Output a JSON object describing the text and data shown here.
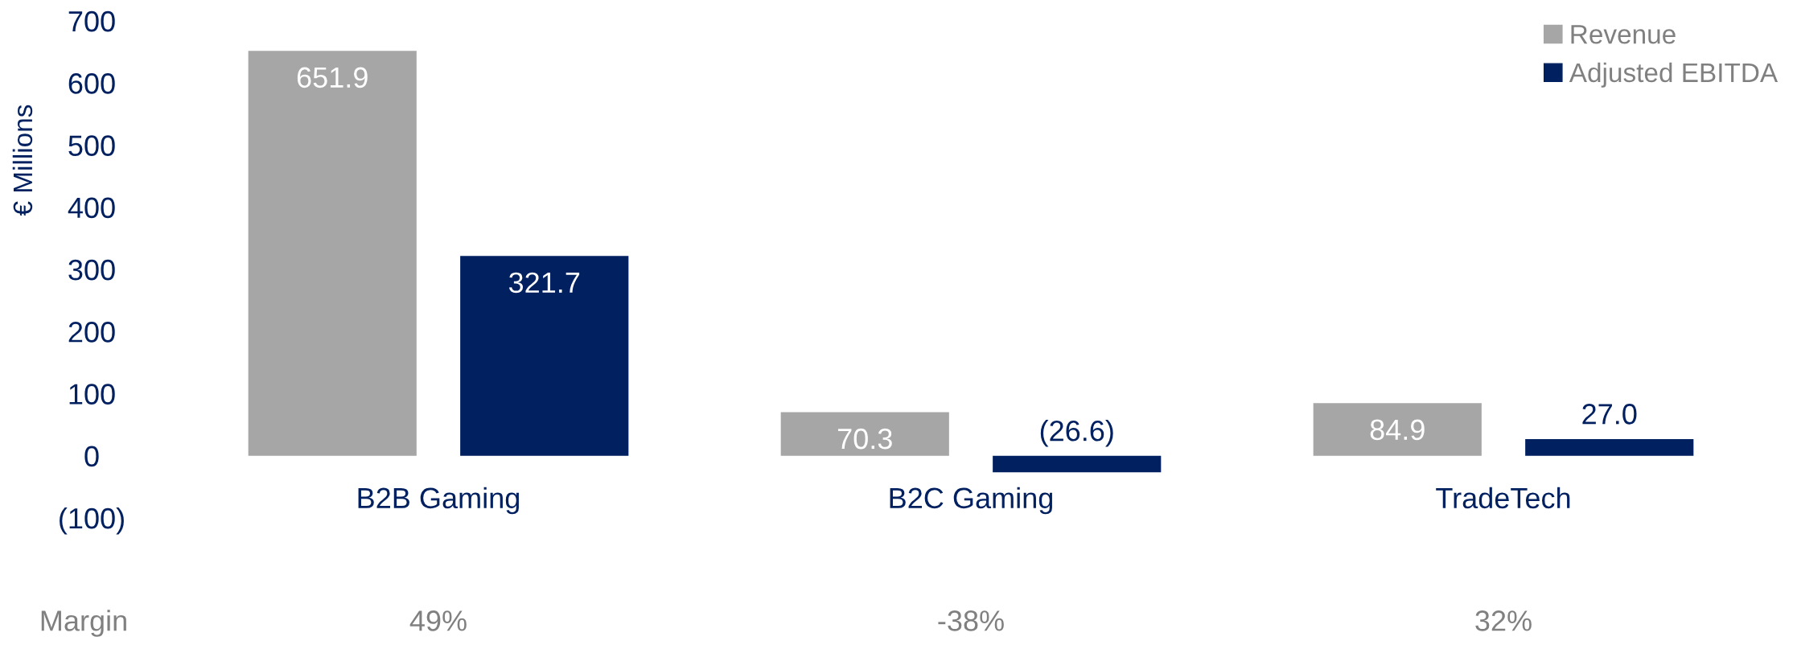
{
  "chart_data": {
    "type": "bar",
    "ylabel": "€ Millions",
    "categories": [
      "B2B Gaming",
      "B2C Gaming",
      "TradeTech"
    ],
    "series": [
      {
        "name": "Revenue",
        "color": "#a6a6a6",
        "values": [
          651.9,
          70.3,
          84.9
        ],
        "value_labels": [
          "651.9",
          "70.3",
          "84.9"
        ]
      },
      {
        "name": "Adjusted EBITDA",
        "color": "#002060",
        "values": [
          321.7,
          -26.6,
          27.0
        ],
        "value_labels": [
          "321.7",
          "(26.6)",
          "27.0"
        ]
      }
    ],
    "ylim": [
      -100,
      700
    ],
    "yticks": [
      {
        "value": -100,
        "label": "(100)"
      },
      0,
      100,
      200,
      300,
      400,
      500,
      600,
      700
    ],
    "grid": false,
    "legend": "top right",
    "annotations": [
      "Margin",
      "49%",
      "-38%",
      "32%"
    ]
  }
}
